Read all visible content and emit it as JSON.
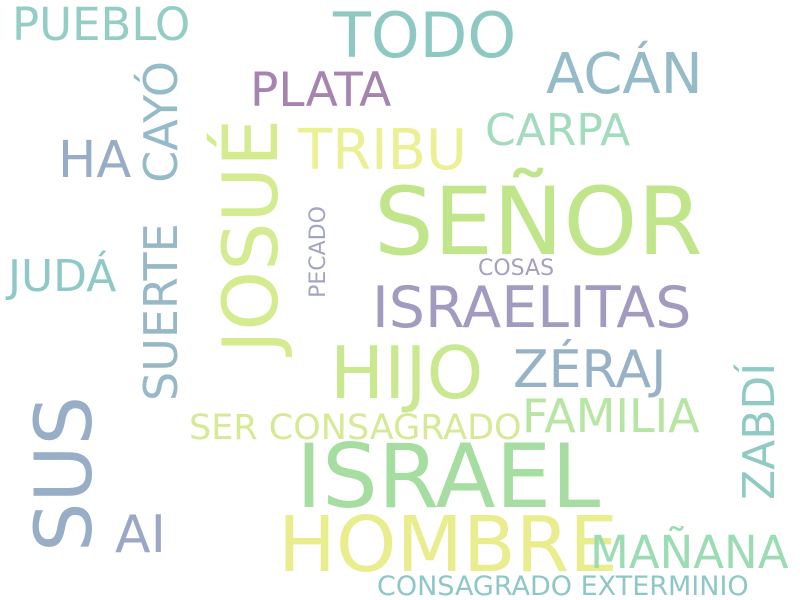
{
  "words": [
    {
      "id": "senor",
      "text": "SEÑOR",
      "color": "#c1e58b"
    },
    {
      "id": "israel",
      "text": "ISRAEL",
      "color": "#a6dea2"
    },
    {
      "id": "hombre",
      "text": "HOMBRE",
      "color": "#eaed8d"
    },
    {
      "id": "hijo",
      "text": "HIJO",
      "color": "#cae890"
    },
    {
      "id": "josue",
      "text": "JOSUÉ",
      "color": "#d4eb8f"
    },
    {
      "id": "sus",
      "text": "SUS",
      "color": "#98adc6"
    },
    {
      "id": "israelitas",
      "text": "ISRAELITAS",
      "color": "#a39abf"
    },
    {
      "id": "todo",
      "text": "TODO",
      "color": "#8ec8c3"
    },
    {
      "id": "acan",
      "text": "ACÁN",
      "color": "#95bac8"
    },
    {
      "id": "plata",
      "text": "PLATA",
      "color": "#a585b0"
    },
    {
      "id": "tribu",
      "text": "TRIBU",
      "color": "#ecf095"
    },
    {
      "id": "carpa",
      "text": "CARPA",
      "color": "#a2dbbd"
    },
    {
      "id": "pueblo",
      "text": "PUEBLO",
      "color": "#94cdc4"
    },
    {
      "id": "ha",
      "text": "HA",
      "color": "#99acc6"
    },
    {
      "id": "cayo",
      "text": "CAYÓ",
      "color": "#95bac8"
    },
    {
      "id": "suerte",
      "text": "SUERTE",
      "color": "#97b8c6"
    },
    {
      "id": "juda",
      "text": "JUDÁ",
      "color": "#8fc8c6"
    },
    {
      "id": "pecado",
      "text": "PECADO",
      "color": "#a4a5c6"
    },
    {
      "id": "cosas",
      "text": "COSAS",
      "color": "#a79ec0"
    },
    {
      "id": "zeraj",
      "text": "ZÉRAJ",
      "color": "#97b1c6"
    },
    {
      "id": "familia",
      "text": "FAMILIA",
      "color": "#b6e6a1"
    },
    {
      "id": "ser-consagrado",
      "text": "SER CONSAGRADO",
      "color": "#d6ea95"
    },
    {
      "id": "zabdi",
      "text": "ZABDÍ",
      "color": "#8fcac4"
    },
    {
      "id": "ai",
      "text": "AI",
      "color": "#9aa8c6"
    },
    {
      "id": "manana",
      "text": "MAÑANA",
      "color": "#9cdcb4"
    },
    {
      "id": "consagrado-exterminio",
      "text": "CONSAGRADO EXTERMINIO",
      "color": "#8ec7c6"
    }
  ]
}
